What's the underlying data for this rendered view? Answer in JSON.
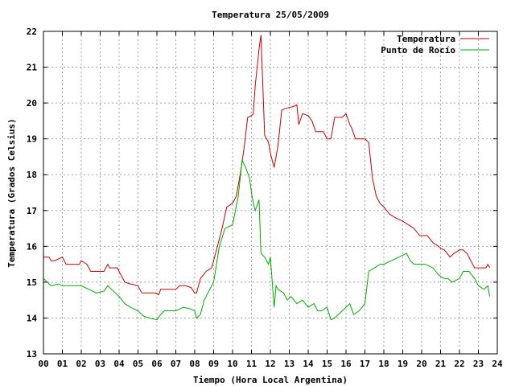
{
  "chart_data": {
    "type": "line",
    "title": "Temperatura 25/05/2009",
    "xlabel": "Tiempo (Hora Local Argentina)",
    "ylabel": "Temperatura (Grados Celsius)",
    "xlim": [
      0,
      24
    ],
    "ylim": [
      13,
      22
    ],
    "x_ticks": [
      "00",
      "01",
      "02",
      "03",
      "04",
      "05",
      "06",
      "07",
      "08",
      "09",
      "10",
      "11",
      "12",
      "13",
      "14",
      "15",
      "16",
      "17",
      "18",
      "19",
      "20",
      "21",
      "22",
      "23",
      "24"
    ],
    "y_ticks": [
      "13",
      "14",
      "15",
      "16",
      "17",
      "18",
      "19",
      "20",
      "21",
      "22"
    ],
    "grid": true,
    "legend_position": "top-right",
    "series": [
      {
        "name": "Temperatura",
        "color": "#cc0000",
        "x": [
          0.0,
          0.3,
          0.4,
          0.6,
          1.0,
          1.2,
          1.9,
          2.0,
          2.3,
          2.5,
          3.2,
          3.4,
          3.5,
          3.9,
          4.0,
          4.3,
          4.6,
          5.0,
          5.2,
          5.6,
          5.9,
          6.1,
          6.2,
          6.5,
          7.0,
          7.2,
          7.5,
          7.8,
          8.0,
          8.1,
          8.3,
          8.6,
          8.9,
          9.2,
          9.4,
          9.7,
          10.0,
          10.2,
          10.4,
          10.6,
          10.8,
          11.0,
          11.1,
          11.2,
          11.3,
          11.4,
          11.5,
          11.7,
          11.9,
          12.0,
          12.1,
          12.2,
          12.4,
          12.6,
          12.8,
          13.2,
          13.4,
          13.5,
          13.7,
          14.0,
          14.2,
          14.4,
          14.6,
          14.8,
          15.0,
          15.2,
          15.4,
          15.8,
          16.0,
          16.2,
          16.3,
          16.5,
          17.0,
          17.2,
          17.4,
          17.6,
          17.8,
          18.0,
          18.3,
          18.6,
          19.0,
          19.3,
          19.6,
          19.9,
          20.0,
          20.3,
          20.6,
          20.9,
          21.0,
          21.2,
          21.5,
          21.7,
          22.0,
          22.2,
          22.4,
          22.6,
          22.8,
          23.0,
          23.2,
          23.4,
          23.5,
          23.6
        ],
        "values": [
          15.7,
          15.7,
          15.6,
          15.6,
          15.7,
          15.5,
          15.5,
          15.6,
          15.5,
          15.3,
          15.3,
          15.5,
          15.4,
          15.4,
          15.3,
          15.0,
          14.95,
          14.9,
          14.7,
          14.7,
          14.7,
          14.65,
          14.8,
          14.8,
          14.8,
          14.9,
          14.9,
          14.85,
          14.7,
          14.7,
          15.1,
          15.3,
          15.4,
          16.0,
          16.4,
          17.1,
          17.2,
          17.4,
          18.0,
          18.7,
          19.6,
          19.65,
          19.7,
          20.5,
          21.0,
          21.5,
          21.9,
          19.1,
          18.9,
          18.6,
          18.4,
          18.2,
          18.8,
          19.8,
          19.85,
          19.9,
          19.95,
          19.4,
          19.7,
          19.65,
          19.5,
          19.2,
          19.2,
          19.2,
          19.0,
          19.0,
          19.6,
          19.6,
          19.7,
          19.4,
          19.3,
          19.0,
          19.0,
          18.9,
          17.9,
          17.4,
          17.2,
          17.1,
          16.9,
          16.8,
          16.7,
          16.6,
          16.5,
          16.3,
          16.3,
          16.3,
          16.1,
          16.0,
          15.95,
          15.9,
          15.7,
          15.8,
          15.9,
          15.9,
          15.8,
          15.6,
          15.4,
          15.4,
          15.4,
          15.4,
          15.5,
          15.4
        ]
      },
      {
        "name": "Punto de Rocío",
        "color": "#00aa00",
        "x": [
          0.0,
          0.2,
          0.4,
          0.8,
          1.0,
          1.5,
          2.0,
          2.4,
          2.8,
          3.2,
          3.4,
          3.6,
          4.0,
          4.3,
          4.6,
          5.0,
          5.3,
          5.6,
          6.0,
          6.2,
          6.4,
          6.8,
          7.0,
          7.4,
          7.8,
          8.0,
          8.1,
          8.3,
          8.5,
          8.7,
          9.0,
          9.3,
          9.6,
          10.0,
          10.3,
          10.5,
          10.7,
          10.9,
          11.0,
          11.1,
          11.2,
          11.4,
          11.5,
          11.6,
          11.7,
          11.9,
          12.0,
          12.2,
          12.3,
          12.4,
          12.7,
          12.9,
          13.1,
          13.4,
          13.7,
          14.0,
          14.3,
          14.5,
          14.7,
          15.0,
          15.2,
          15.4,
          15.6,
          15.8,
          16.0,
          16.2,
          16.4,
          16.7,
          17.0,
          17.2,
          17.5,
          17.8,
          18.0,
          18.4,
          18.8,
          19.2,
          19.4,
          19.6,
          19.8,
          20.2,
          20.6,
          20.9,
          21.2,
          21.4,
          21.6,
          22.0,
          22.2,
          22.5,
          22.8,
          23.0,
          23.3,
          23.5,
          23.6
        ],
        "values": [
          15.1,
          15.0,
          14.9,
          14.95,
          14.9,
          14.9,
          14.9,
          14.8,
          14.7,
          14.75,
          14.9,
          14.8,
          14.6,
          14.4,
          14.3,
          14.2,
          14.05,
          14.0,
          13.95,
          14.1,
          14.2,
          14.2,
          14.2,
          14.3,
          14.25,
          14.2,
          14.0,
          14.1,
          14.5,
          14.7,
          15.0,
          16.0,
          16.5,
          16.6,
          17.4,
          18.4,
          18.2,
          17.9,
          17.5,
          17.2,
          17.0,
          17.3,
          15.8,
          15.75,
          15.7,
          15.5,
          15.7,
          14.3,
          14.9,
          14.8,
          14.7,
          14.5,
          14.6,
          14.4,
          14.5,
          14.3,
          14.4,
          14.2,
          14.2,
          14.3,
          13.95,
          14.0,
          14.1,
          14.2,
          14.3,
          14.4,
          14.1,
          14.2,
          14.4,
          15.3,
          15.4,
          15.5,
          15.5,
          15.6,
          15.7,
          15.8,
          15.6,
          15.5,
          15.5,
          15.5,
          15.4,
          15.2,
          15.1,
          15.1,
          15.0,
          15.1,
          15.3,
          15.3,
          15.1,
          14.9,
          14.8,
          14.9,
          14.6
        ]
      }
    ]
  }
}
